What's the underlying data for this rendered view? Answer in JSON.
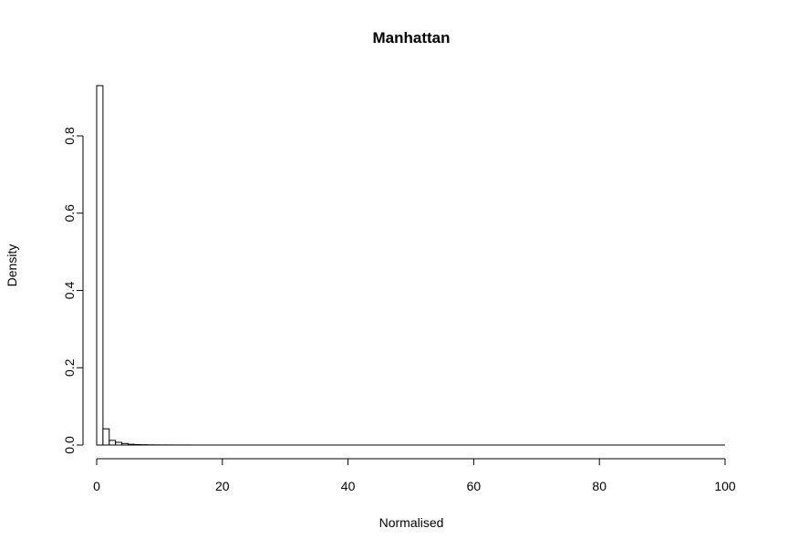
{
  "chart_data": {
    "type": "bar",
    "title": "Manhattan",
    "xlabel": "Normalised",
    "ylabel": "Density",
    "xlim": [
      0,
      100
    ],
    "ylim": [
      0,
      0.9
    ],
    "x_ticks": [
      0,
      20,
      40,
      60,
      80,
      100
    ],
    "y_ticks": [
      0.0,
      0.2,
      0.4,
      0.6,
      0.8
    ],
    "y_tick_labels": [
      "0.0",
      "0.2",
      "0.4",
      "0.6",
      "0.8"
    ],
    "bin_width": 1,
    "bin_start": 0,
    "values": [
      0.93,
      0.042,
      0.012,
      0.007,
      0.004,
      0.002,
      0.0012,
      0.0008,
      0.0005,
      0.0003,
      0.0002,
      0.0002,
      0.0001,
      0.0001,
      0.0001
    ],
    "grid": false,
    "legend": false
  }
}
